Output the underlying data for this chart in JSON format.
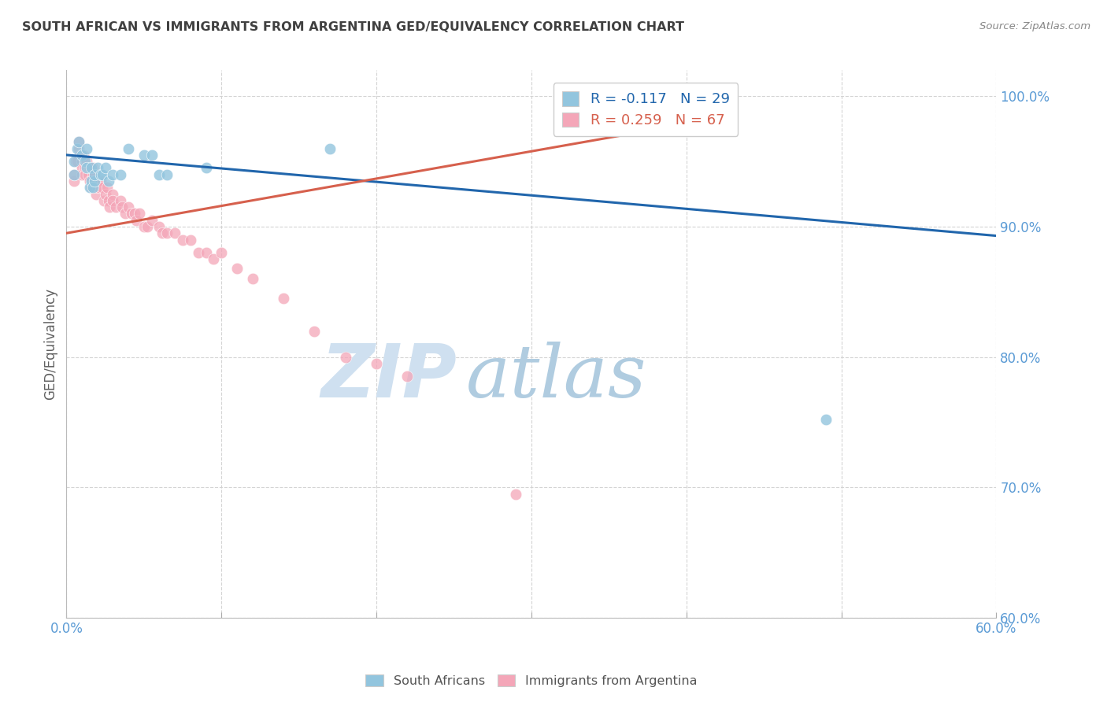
{
  "title": "SOUTH AFRICAN VS IMMIGRANTS FROM ARGENTINA GED/EQUIVALENCY CORRELATION CHART",
  "source": "Source: ZipAtlas.com",
  "ylabel": "GED/Equivalency",
  "xlabel": "",
  "xlim": [
    0.0,
    0.6
  ],
  "ylim": [
    0.6,
    1.02
  ],
  "yticks": [
    0.6,
    0.7,
    0.8,
    0.9,
    1.0
  ],
  "ytick_labels": [
    "60.0%",
    "70.0%",
    "80.0%",
    "90.0%",
    "100.0%"
  ],
  "xticks": [
    0.0,
    0.1,
    0.2,
    0.3,
    0.4,
    0.5,
    0.6
  ],
  "xtick_labels": [
    "0.0%",
    "",
    "",
    "",
    "",
    "",
    "60.0%"
  ],
  "blue_R": -0.117,
  "blue_N": 29,
  "pink_R": 0.259,
  "pink_N": 67,
  "blue_color": "#92c5de",
  "pink_color": "#f4a6b8",
  "blue_line_color": "#2166ac",
  "pink_line_color": "#d6604d",
  "watermark_zip": "ZIP",
  "watermark_atlas": "atlas",
  "watermark_color": "#cfe0f0",
  "background_color": "#ffffff",
  "grid_color": "#d0d0d0",
  "title_color": "#404040",
  "axis_label_color": "#606060",
  "tick_label_color": "#5b9bd5",
  "blue_scatter_x": [
    0.005,
    0.005,
    0.007,
    0.008,
    0.01,
    0.012,
    0.013,
    0.013,
    0.015,
    0.016,
    0.016,
    0.017,
    0.018,
    0.018,
    0.02,
    0.022,
    0.023,
    0.025,
    0.027,
    0.03,
    0.035,
    0.04,
    0.05,
    0.055,
    0.06,
    0.065,
    0.09,
    0.17,
    0.49
  ],
  "blue_scatter_y": [
    0.94,
    0.95,
    0.96,
    0.965,
    0.955,
    0.95,
    0.945,
    0.96,
    0.93,
    0.945,
    0.935,
    0.93,
    0.935,
    0.94,
    0.945,
    0.94,
    0.94,
    0.945,
    0.935,
    0.94,
    0.94,
    0.96,
    0.955,
    0.955,
    0.94,
    0.94,
    0.945,
    0.96,
    0.752
  ],
  "pink_scatter_x": [
    0.005,
    0.005,
    0.006,
    0.007,
    0.008,
    0.008,
    0.009,
    0.01,
    0.01,
    0.01,
    0.011,
    0.012,
    0.012,
    0.013,
    0.014,
    0.014,
    0.015,
    0.015,
    0.016,
    0.017,
    0.017,
    0.018,
    0.018,
    0.018,
    0.019,
    0.02,
    0.02,
    0.021,
    0.022,
    0.023,
    0.024,
    0.025,
    0.026,
    0.027,
    0.028,
    0.03,
    0.03,
    0.032,
    0.035,
    0.036,
    0.038,
    0.04,
    0.042,
    0.044,
    0.045,
    0.047,
    0.05,
    0.052,
    0.055,
    0.06,
    0.062,
    0.065,
    0.07,
    0.075,
    0.08,
    0.085,
    0.09,
    0.095,
    0.1,
    0.11,
    0.12,
    0.14,
    0.16,
    0.18,
    0.2,
    0.22,
    0.29
  ],
  "pink_scatter_y": [
    0.935,
    0.94,
    0.95,
    0.95,
    0.96,
    0.965,
    0.955,
    0.95,
    0.945,
    0.94,
    0.955,
    0.945,
    0.94,
    0.95,
    0.94,
    0.945,
    0.945,
    0.935,
    0.93,
    0.94,
    0.945,
    0.935,
    0.94,
    0.93,
    0.925,
    0.93,
    0.935,
    0.93,
    0.935,
    0.93,
    0.92,
    0.925,
    0.93,
    0.92,
    0.915,
    0.925,
    0.92,
    0.915,
    0.92,
    0.915,
    0.91,
    0.915,
    0.91,
    0.91,
    0.905,
    0.91,
    0.9,
    0.9,
    0.905,
    0.9,
    0.895,
    0.895,
    0.895,
    0.89,
    0.89,
    0.88,
    0.88,
    0.875,
    0.88,
    0.868,
    0.86,
    0.845,
    0.82,
    0.8,
    0.795,
    0.785,
    0.695
  ],
  "blue_trend_x": [
    0.0,
    0.6
  ],
  "blue_trend_y": [
    0.955,
    0.893
  ],
  "pink_trend_x": [
    0.0,
    0.43
  ],
  "pink_trend_y": [
    0.895,
    0.985
  ]
}
